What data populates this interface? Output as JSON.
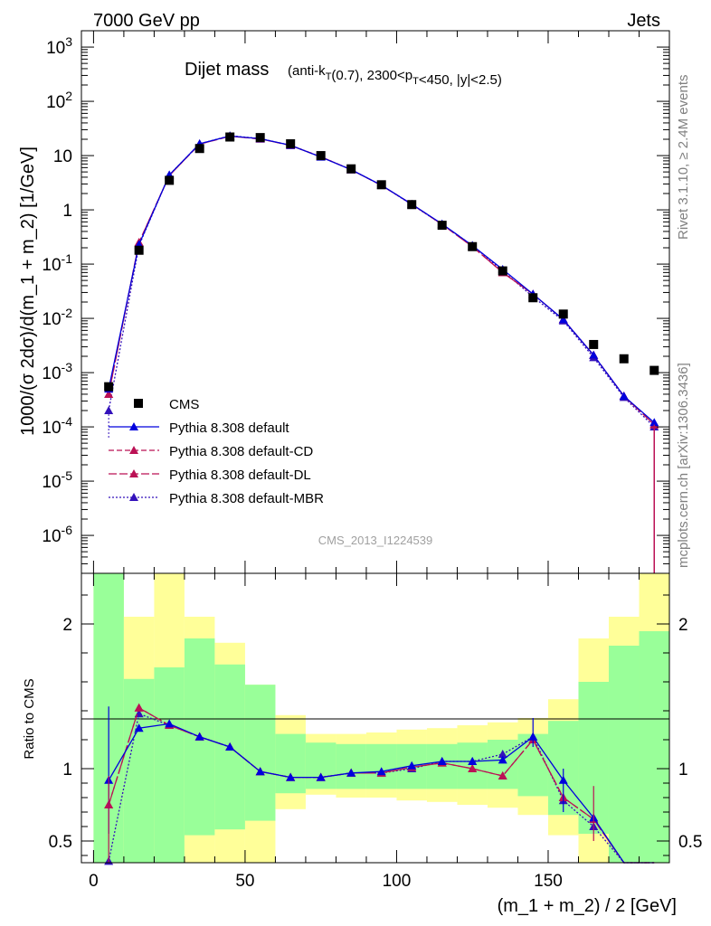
{
  "header": {
    "left": "7000 GeV pp",
    "right": "Jets"
  },
  "side_text": {
    "rivet": "Rivet 3.1.10, ≥ 2.4M events",
    "mcplots": "mcplots.cern.ch [arXiv:1306.3436]"
  },
  "title": {
    "main": "Dijet mass",
    "sub": "(anti-k_T(0.7), 2300<p_T<450, |y|<2.5)"
  },
  "analysis_id": "CMS_2013_I1224539",
  "colors": {
    "data": "#000000",
    "default": "#0000dd",
    "cd": "#bb1155",
    "dl": "#bb1155",
    "mbr": "#3311bb",
    "band_green": "#99ff99",
    "band_yellow": "#ffff99"
  },
  "legend": [
    {
      "label": "CMS",
      "style": "data"
    },
    {
      "label": "Pythia 8.308 default",
      "style": "default"
    },
    {
      "label": "Pythia 8.308 default-CD",
      "style": "cd"
    },
    {
      "label": "Pythia 8.308 default-DL",
      "style": "dl"
    },
    {
      "label": "Pythia 8.308 default-MBR",
      "style": "mbr"
    }
  ],
  "chart_data": [
    {
      "type": "scatter",
      "ylabel": "1000/(σ 2dσ)/d(m_1 + m_2) [1/GeV]",
      "yscale": "log",
      "ylim": [
        2e-07,
        2000
      ],
      "xlim": [
        -4,
        190
      ],
      "yticks": [
        "10^-6",
        "10^-5",
        "10^-4",
        "10^-3",
        "10^-2",
        "10^-1",
        "1",
        "10",
        "10^2",
        "10^3"
      ],
      "x": [
        5,
        15,
        25,
        35,
        45,
        55,
        65,
        75,
        85,
        95,
        105,
        115,
        125,
        135,
        145,
        155,
        165,
        175,
        185
      ],
      "series": [
        {
          "name": "CMS",
          "values": [
            0.00055,
            0.18,
            3.5,
            13.5,
            22,
            21.5,
            16.5,
            10,
            5.7,
            2.9,
            1.25,
            0.52,
            0.21,
            0.075,
            0.024,
            0.012,
            0.0033,
            0.0018,
            0.0011
          ]
        },
        {
          "name": "Pythia 8.308 default",
          "values": [
            0.0005,
            0.23,
            4.4,
            16.5,
            23,
            20.5,
            15.5,
            9.4,
            5.5,
            2.85,
            1.27,
            0.55,
            0.22,
            0.08,
            0.028,
            0.0095,
            0.0021,
            0.00037,
            0.00012
          ]
        },
        {
          "name": "Pythia 8.308 default-CD",
          "values": [
            0.0004,
            0.25,
            4.3,
            16.3,
            22.8,
            20.3,
            15.4,
            9.5,
            5.5,
            2.82,
            1.27,
            0.54,
            0.21,
            0.07,
            0.028,
            0.0095,
            0.0021,
            0.00037,
            0.00011
          ]
        },
        {
          "name": "Pythia 8.308 default-DL",
          "values": [
            0.0004,
            0.25,
            4.3,
            16.3,
            22.8,
            20.3,
            15.4,
            9.5,
            5.5,
            2.82,
            1.27,
            0.54,
            0.21,
            0.07,
            0.028,
            0.0095,
            0.0021,
            0.00037,
            0.00011
          ]
        },
        {
          "name": "Pythia 8.308 default-MBR",
          "values": [
            0.0002,
            0.22,
            4.4,
            16.5,
            23.2,
            20.6,
            15.5,
            9.5,
            5.5,
            2.84,
            1.25,
            0.54,
            0.22,
            0.075,
            0.025,
            0.009,
            0.0019,
            0.00035,
            0.0001
          ]
        }
      ]
    },
    {
      "type": "line",
      "xlabel": "(m_1 + m_2) / 2 [GeV]",
      "ylabel": "Ratio to CMS",
      "ylim": [
        0.35,
        2.35
      ],
      "xlim": [
        -4,
        190
      ],
      "yticks": [
        0.5,
        1,
        2
      ],
      "xticks": [
        0,
        50,
        100,
        150
      ],
      "x": [
        5,
        15,
        25,
        35,
        45,
        55,
        65,
        75,
        85,
        95,
        105,
        115,
        125,
        135,
        145,
        155,
        165,
        175,
        185
      ],
      "bins": [
        [
          0,
          10
        ],
        [
          10,
          20
        ],
        [
          20,
          30
        ],
        [
          30,
          40
        ],
        [
          40,
          50
        ],
        [
          50,
          60
        ],
        [
          60,
          70
        ],
        [
          70,
          80
        ],
        [
          80,
          90
        ],
        [
          90,
          100
        ],
        [
          100,
          110
        ],
        [
          110,
          120
        ],
        [
          120,
          130
        ],
        [
          130,
          140
        ],
        [
          140,
          150
        ],
        [
          150,
          160
        ],
        [
          160,
          170
        ],
        [
          170,
          180
        ],
        [
          180,
          190
        ]
      ],
      "band_green": [
        [
          0.35,
          2.35
        ],
        [
          0.35,
          1.62
        ],
        [
          0.35,
          1.7
        ],
        [
          0.54,
          1.9
        ],
        [
          0.58,
          1.72
        ],
        [
          0.64,
          1.58
        ],
        [
          0.83,
          1.24
        ],
        [
          0.86,
          1.18
        ],
        [
          0.86,
          1.17
        ],
        [
          0.86,
          1.17
        ],
        [
          0.86,
          1.17
        ],
        [
          0.86,
          1.17
        ],
        [
          0.86,
          1.18
        ],
        [
          0.86,
          1.2
        ],
        [
          0.81,
          1.24
        ],
        [
          0.68,
          1.33
        ],
        [
          0.55,
          1.6
        ],
        [
          0.35,
          1.85
        ],
        [
          0.35,
          1.95
        ]
      ],
      "band_yellow": [
        [
          0.35,
          2.35
        ],
        [
          0.35,
          2.05
        ],
        [
          0.35,
          2.35
        ],
        [
          0.35,
          2.05
        ],
        [
          0.35,
          1.87
        ],
        [
          0.35,
          1.58
        ],
        [
          0.72,
          1.37
        ],
        [
          0.82,
          1.24
        ],
        [
          0.8,
          1.24
        ],
        [
          0.8,
          1.25
        ],
        [
          0.78,
          1.27
        ],
        [
          0.77,
          1.28
        ],
        [
          0.75,
          1.3
        ],
        [
          0.73,
          1.32
        ],
        [
          0.68,
          1.35
        ],
        [
          0.54,
          1.48
        ],
        [
          0.35,
          1.9
        ],
        [
          0.35,
          2.05
        ],
        [
          0.35,
          2.35
        ]
      ],
      "series": [
        {
          "name": "Pythia 8.308 default",
          "values": [
            0.92,
            1.28,
            1.31,
            1.22,
            1.15,
            0.98,
            0.94,
            0.94,
            0.97,
            0.98,
            1.02,
            1.05,
            1.05,
            1.06,
            1.22,
            0.92,
            0.66,
            0.3,
            0.3
          ]
        },
        {
          "name": "Pythia 8.308 default-CD",
          "values": [
            0.75,
            1.42,
            1.3,
            1.22,
            1.15,
            0.98,
            0.94,
            0.94,
            0.97,
            0.97,
            1.01,
            1.04,
            1.0,
            0.95,
            1.2,
            0.8,
            0.65,
            0.3,
            0.3
          ]
        },
        {
          "name": "Pythia 8.308 default-DL",
          "values": [
            0.75,
            1.42,
            1.3,
            1.22,
            1.15,
            0.98,
            0.94,
            0.94,
            0.97,
            0.97,
            1.01,
            1.04,
            1.0,
            0.95,
            1.2,
            0.8,
            0.65,
            0.3,
            0.3
          ]
        },
        {
          "name": "Pythia 8.308 default-MBR",
          "values": [
            0.36,
            1.38,
            1.3,
            1.22,
            1.15,
            0.98,
            0.94,
            0.94,
            0.97,
            0.97,
            1.0,
            1.05,
            1.05,
            1.1,
            1.22,
            0.78,
            0.6,
            0.3,
            0.3
          ]
        }
      ]
    }
  ]
}
